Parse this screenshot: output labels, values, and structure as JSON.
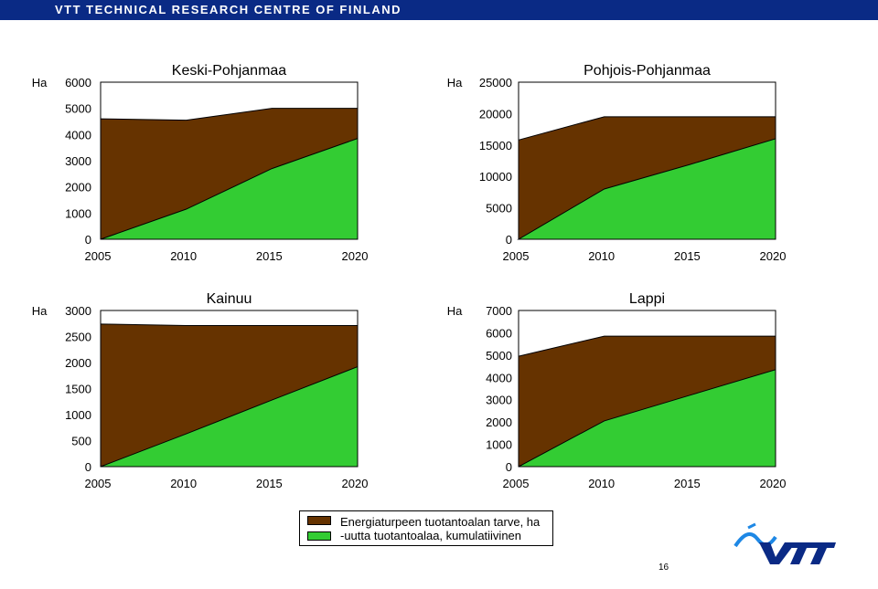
{
  "header": {
    "title": "VTT TECHNICAL RESEARCH CENTRE OF FINLAND"
  },
  "legend": {
    "items": [
      {
        "label": "Energiaturpeen tuotantoalan tarve, ha",
        "color": "#663300"
      },
      {
        "label": "-uutta tuotantoalaa, kumulatiivinen",
        "color": "#33cc33"
      }
    ]
  },
  "page_number": "16",
  "logo": {
    "text": "VTT",
    "color": "#0a2a85",
    "accent": "#1e88e5"
  },
  "chart_data": [
    {
      "type": "area",
      "title": "Keski-Pohjanmaa",
      "ylabel": "Ha",
      "x": [
        2005,
        2010,
        2015,
        2020
      ],
      "ylim": [
        0,
        6000
      ],
      "yticks": [
        0,
        1000,
        2000,
        3000,
        4000,
        5000,
        6000
      ],
      "series": [
        {
          "name": "Energiaturpeen tuotantoalan tarve, ha",
          "color": "#663300",
          "values": [
            4600,
            4550,
            5000,
            5000
          ]
        },
        {
          "name": "-uutta tuotantoalaa, kumulatiivinen",
          "color": "#33cc33",
          "values": [
            0,
            1150,
            2700,
            3850
          ]
        }
      ]
    },
    {
      "type": "area",
      "title": "Pohjois-Pohjanmaa",
      "ylabel": "Ha",
      "x": [
        2005,
        2010,
        2015,
        2020
      ],
      "ylim": [
        0,
        25000
      ],
      "yticks": [
        0,
        5000,
        10000,
        15000,
        20000,
        25000
      ],
      "series": [
        {
          "name": "Energiaturpeen tuotantoalan tarve, ha",
          "color": "#663300",
          "values": [
            15800,
            19500,
            19500,
            19500
          ]
        },
        {
          "name": "-uutta tuotantoalaa, kumulatiivinen",
          "color": "#33cc33",
          "values": [
            0,
            8000,
            11900,
            16000
          ]
        }
      ]
    },
    {
      "type": "area",
      "title": "Kainuu",
      "ylabel": "Ha",
      "x": [
        2005,
        2010,
        2015,
        2020
      ],
      "ylim": [
        0,
        3000
      ],
      "yticks": [
        0,
        500,
        1000,
        1500,
        2000,
        2500,
        3000
      ],
      "series": [
        {
          "name": "Energiaturpeen tuotantoalan tarve, ha",
          "color": "#663300",
          "values": [
            2740,
            2710,
            2710,
            2710
          ]
        },
        {
          "name": "-uutta tuotantoalaa, kumulatiivinen",
          "color": "#33cc33",
          "values": [
            0,
            630,
            1280,
            1920
          ]
        }
      ]
    },
    {
      "type": "area",
      "title": "Lappi",
      "ylabel": "Ha",
      "x": [
        2005,
        2010,
        2015,
        2020
      ],
      "ylim": [
        0,
        7000
      ],
      "yticks": [
        0,
        1000,
        2000,
        3000,
        4000,
        5000,
        6000,
        7000
      ],
      "series": [
        {
          "name": "Energiaturpeen tuotantoalan tarve, ha",
          "color": "#663300",
          "values": [
            4950,
            5850,
            5850,
            5850
          ]
        },
        {
          "name": "-uutta tuotantoalaa, kumulatiivinen",
          "color": "#33cc33",
          "values": [
            0,
            2050,
            3200,
            4350
          ]
        }
      ]
    }
  ]
}
